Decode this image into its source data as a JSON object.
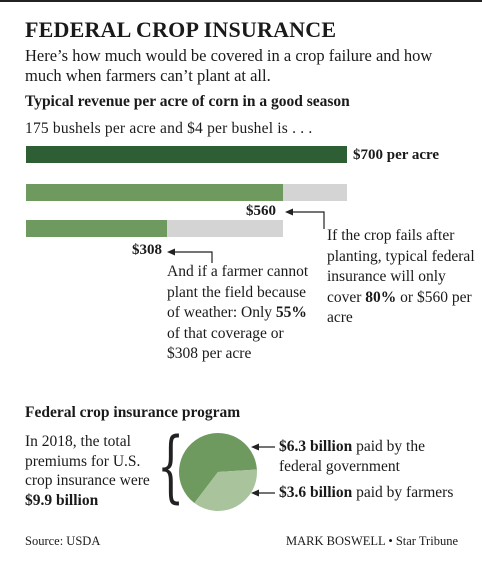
{
  "header": {
    "title": "FEDERAL CROP INSURANCE",
    "subtitle": "Here’s how much would be covered in a crop failure and how much when farmers can’t plant at all."
  },
  "section1": {
    "heading": "Typical revenue per acre of corn in a good season",
    "lead": "175 bushels per acre and $4 per bushel is . . ."
  },
  "chart_data": [
    {
      "type": "bar",
      "orientation": "horizontal",
      "categories": [
        "Good season revenue",
        "Crop fails after planting",
        "Farmer cannot plant"
      ],
      "values": [
        700,
        560,
        308
      ],
      "labels": [
        "$700 per acre",
        "$560",
        "$308"
      ],
      "reference_values": [
        700,
        700,
        560
      ],
      "unit": "$ per acre",
      "colors": {
        "full": "#2e5e34",
        "covered": "#6e9a5f",
        "uncovered": "#d4d4d4"
      },
      "annotations": [
        {
          "target": "$560",
          "parts": [
            "If the crop fails after planting, typical federal insurance will only cover ",
            "80%",
            " or $560 per acre"
          ]
        },
        {
          "target": "$308",
          "parts": [
            "And if a farmer cannot plant the field because of weather: Only ",
            "55%",
            " of that coverage or $308 per acre"
          ]
        }
      ]
    },
    {
      "type": "pie",
      "title": "Federal crop insurance program",
      "slices": [
        {
          "label": "$6.3 billion",
          "suffix": " paid by the federal government",
          "value": 6.3,
          "color": "#6e9a5f"
        },
        {
          "label": "$3.6 billion",
          "suffix": " paid by farmers",
          "value": 3.6,
          "color": "#a9c49d"
        }
      ],
      "total_text": [
        "In 2018, the total premiums for U.S. crop insurance were ",
        "$9.9 billion"
      ]
    }
  ],
  "footer": {
    "source": "Source: USDA",
    "credit": "MARK BOSWELL • Star Tribune"
  }
}
